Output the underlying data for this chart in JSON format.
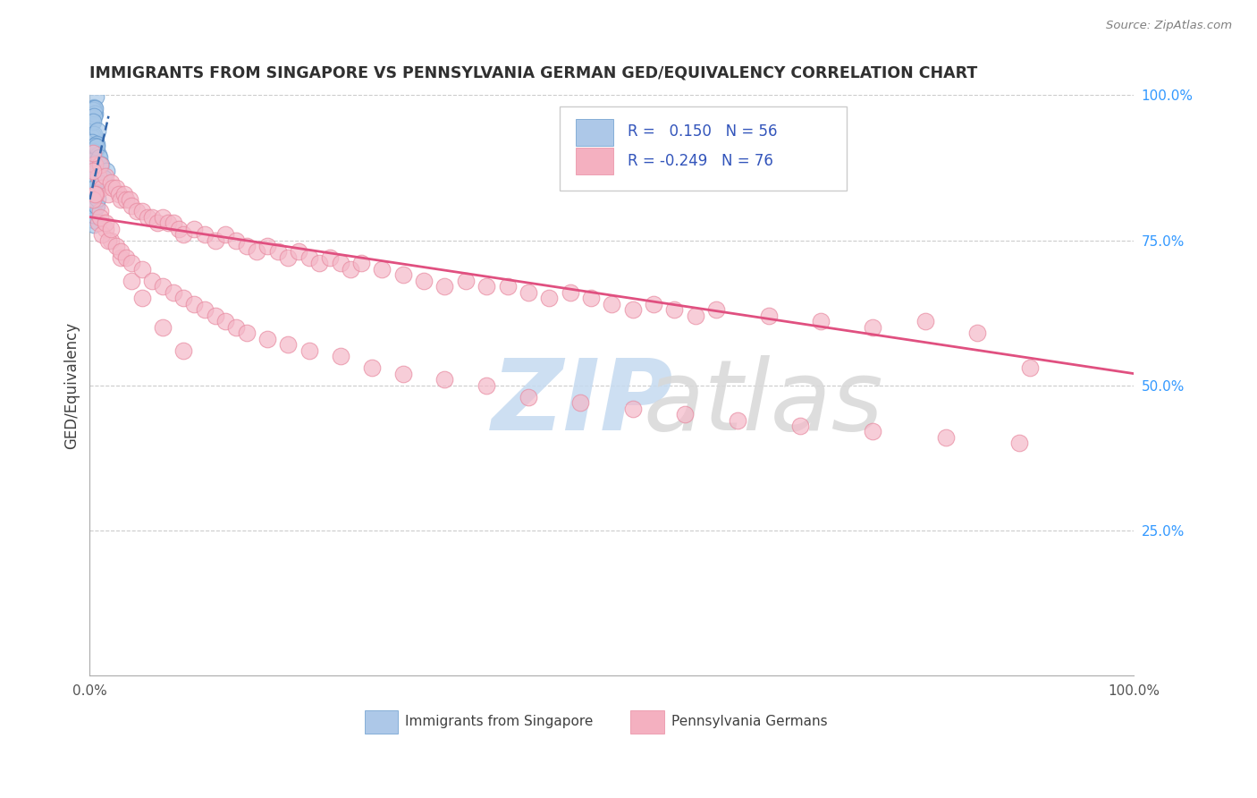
{
  "title": "IMMIGRANTS FROM SINGAPORE VS PENNSYLVANIA GERMAN GED/EQUIVALENCY CORRELATION CHART",
  "source": "Source: ZipAtlas.com",
  "ylabel": "GED/Equivalency",
  "r_blue": 0.15,
  "n_blue": 56,
  "r_pink": -0.249,
  "n_pink": 76,
  "blue_color": "#a8c8e8",
  "blue_edge_color": "#6699cc",
  "pink_color": "#f4b8c8",
  "pink_edge_color": "#e88aa0",
  "blue_line_color": "#3366aa",
  "pink_line_color": "#e05080",
  "blue_legend_color": "#adc8e8",
  "pink_legend_color": "#f4b0c0",
  "legend_text_color": "#3355bb",
  "watermark_zip_color": "#c5daf0",
  "watermark_atlas_color": "#d8d8d8",
  "blue_points_x": [
    0.002,
    0.003,
    0.002,
    0.003,
    0.004,
    0.003,
    0.002,
    0.003,
    0.004,
    0.003,
    0.004,
    0.004,
    0.005,
    0.003,
    0.004,
    0.004,
    0.005,
    0.004,
    0.005,
    0.005,
    0.006,
    0.003,
    0.004,
    0.005,
    0.006,
    0.003,
    0.004,
    0.005,
    0.004,
    0.003,
    0.004,
    0.005,
    0.003,
    0.004,
    0.003,
    0.004,
    0.003,
    0.004,
    0.005,
    0.004,
    0.003,
    0.004,
    0.005,
    0.003,
    0.004,
    0.003,
    0.004,
    0.003,
    0.004,
    0.005,
    0.01,
    0.012,
    0.014,
    0.013,
    0.011,
    0.015
  ],
  "blue_points_y": [
    0.98,
    0.97,
    0.96,
    0.96,
    0.98,
    0.97,
    0.95,
    0.96,
    0.97,
    0.94,
    0.95,
    0.96,
    0.95,
    0.93,
    0.94,
    0.92,
    0.94,
    0.91,
    0.93,
    0.92,
    0.93,
    0.9,
    0.91,
    0.92,
    0.91,
    0.88,
    0.89,
    0.9,
    0.87,
    0.86,
    0.88,
    0.87,
    0.85,
    0.86,
    0.84,
    0.85,
    0.83,
    0.84,
    0.85,
    0.82,
    0.81,
    0.83,
    0.82,
    0.8,
    0.81,
    0.79,
    0.8,
    0.78,
    0.79,
    0.8,
    0.88,
    0.87,
    0.89,
    0.86,
    0.85,
    0.84
  ],
  "pink_points_x": [
    0.005,
    0.008,
    0.01,
    0.012,
    0.015,
    0.018,
    0.02,
    0.022,
    0.025,
    0.028,
    0.03,
    0.033,
    0.035,
    0.038,
    0.04,
    0.045,
    0.05,
    0.055,
    0.06,
    0.065,
    0.07,
    0.075,
    0.08,
    0.085,
    0.09,
    0.1,
    0.11,
    0.12,
    0.13,
    0.14,
    0.15,
    0.16,
    0.17,
    0.18,
    0.19,
    0.2,
    0.21,
    0.22,
    0.23,
    0.24,
    0.25,
    0.26,
    0.28,
    0.3,
    0.32,
    0.34,
    0.36,
    0.38,
    0.4,
    0.42,
    0.44,
    0.46,
    0.48,
    0.5,
    0.52,
    0.54,
    0.56,
    0.58,
    0.6,
    0.65,
    0.7,
    0.75,
    0.8,
    0.85,
    0.9,
    0.003,
    0.006,
    0.01,
    0.015,
    0.02,
    0.03,
    0.04,
    0.05,
    0.07,
    0.09,
    0.003
  ],
  "pink_points_y": [
    0.88,
    0.86,
    0.88,
    0.84,
    0.86,
    0.83,
    0.85,
    0.84,
    0.84,
    0.83,
    0.82,
    0.83,
    0.82,
    0.82,
    0.81,
    0.8,
    0.8,
    0.79,
    0.79,
    0.78,
    0.79,
    0.78,
    0.78,
    0.77,
    0.76,
    0.77,
    0.76,
    0.75,
    0.76,
    0.75,
    0.74,
    0.73,
    0.74,
    0.73,
    0.72,
    0.73,
    0.72,
    0.71,
    0.72,
    0.71,
    0.7,
    0.71,
    0.7,
    0.69,
    0.68,
    0.67,
    0.68,
    0.67,
    0.67,
    0.66,
    0.65,
    0.66,
    0.65,
    0.64,
    0.63,
    0.64,
    0.63,
    0.62,
    0.63,
    0.62,
    0.61,
    0.6,
    0.61,
    0.59,
    0.53,
    0.87,
    0.83,
    0.8,
    0.77,
    0.75,
    0.72,
    0.68,
    0.65,
    0.6,
    0.56,
    0.9
  ],
  "pink_points_x2": [
    0.003,
    0.005,
    0.008,
    0.01,
    0.012,
    0.015,
    0.018,
    0.02,
    0.025,
    0.03,
    0.035,
    0.04,
    0.05,
    0.06,
    0.07,
    0.08,
    0.09,
    0.1,
    0.11,
    0.12,
    0.13,
    0.14,
    0.15,
    0.17,
    0.19,
    0.21,
    0.24,
    0.27,
    0.3,
    0.34,
    0.38,
    0.42,
    0.47,
    0.52,
    0.57,
    0.62,
    0.68,
    0.75,
    0.82,
    0.89
  ],
  "pink_points_y2": [
    0.82,
    0.83,
    0.78,
    0.79,
    0.76,
    0.78,
    0.75,
    0.77,
    0.74,
    0.73,
    0.72,
    0.71,
    0.7,
    0.68,
    0.67,
    0.66,
    0.65,
    0.64,
    0.63,
    0.62,
    0.61,
    0.6,
    0.59,
    0.58,
    0.57,
    0.56,
    0.55,
    0.53,
    0.52,
    0.51,
    0.5,
    0.48,
    0.47,
    0.46,
    0.45,
    0.44,
    0.43,
    0.42,
    0.41,
    0.4
  ],
  "xlim": [
    0.0,
    1.0
  ],
  "ylim": [
    0.0,
    1.0
  ],
  "yticks_right": [
    0.25,
    0.5,
    0.75,
    1.0
  ],
  "ytick_labels_right": [
    "25.0%",
    "50.0%",
    "75.0%",
    "100.0%"
  ],
  "background_color": "#ffffff",
  "grid_color": "#cccccc",
  "title_color": "#303030",
  "source_color": "#808080"
}
